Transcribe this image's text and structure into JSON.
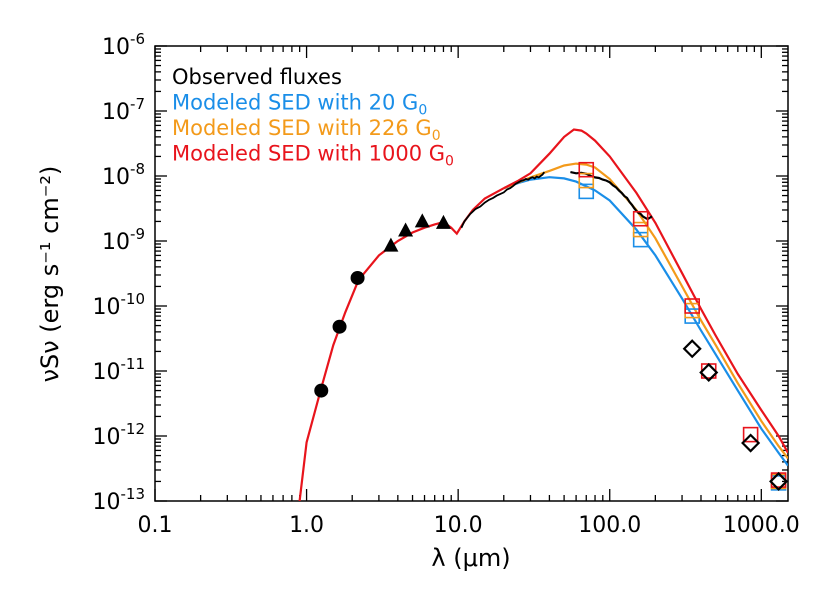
{
  "chart_data": {
    "type": "scatter",
    "xlabel": "λ (μm)",
    "ylabel": "νSν (erg s⁻¹ cm⁻²)",
    "xscale": "log",
    "yscale": "log",
    "xlim": [
      0.1,
      1500
    ],
    "ylim": [
      1e-13,
      1e-06
    ],
    "x_ticks": [
      {
        "value": 0.1,
        "label": "0.1"
      },
      {
        "value": 1,
        "label": "1.0"
      },
      {
        "value": 10,
        "label": "10.0"
      },
      {
        "value": 100,
        "label": "100.0"
      },
      {
        "value": 1000,
        "label": "1000.0"
      }
    ],
    "y_ticks": [
      {
        "value": 1e-13,
        "base": "10",
        "exp": "-13"
      },
      {
        "value": 1e-12,
        "base": "10",
        "exp": "-12"
      },
      {
        "value": 1e-11,
        "base": "10",
        "exp": "-11"
      },
      {
        "value": 1e-10,
        "base": "10",
        "exp": "-10"
      },
      {
        "value": 1e-09,
        "base": "10",
        "exp": "-9"
      },
      {
        "value": 1e-08,
        "base": "10",
        "exp": "-8"
      },
      {
        "value": 1e-07,
        "base": "10",
        "exp": "-7"
      },
      {
        "value": 1e-06,
        "base": "10",
        "exp": "-6"
      }
    ],
    "legend": {
      "placement": "top-left",
      "entries": [
        {
          "text": "Observed fluxes",
          "sub": "",
          "color": "#000000"
        },
        {
          "text": "Modeled SED with 20 G",
          "sub": "0",
          "color": "#1a8ee8"
        },
        {
          "text": "Modeled SED with 226 G",
          "sub": "0",
          "color": "#f39a1a"
        },
        {
          "text": "Modeled SED with 1000 G",
          "sub": "0",
          "color": "#e8141c"
        }
      ]
    },
    "observed": {
      "color": "#000000",
      "circles": [
        {
          "x": 1.25,
          "y": 5e-12
        },
        {
          "x": 1.65,
          "y": 4.8e-11
        },
        {
          "x": 2.17,
          "y": 2.7e-10
        }
      ],
      "triangles": [
        {
          "x": 3.6,
          "y": 8.5e-10
        },
        {
          "x": 4.5,
          "y": 1.45e-09
        },
        {
          "x": 5.8,
          "y": 2e-09
        },
        {
          "x": 8.0,
          "y": 1.9e-09
        }
      ],
      "diamonds": [
        {
          "x": 350,
          "y": 2.2e-11
        },
        {
          "x": 450,
          "y": 9.5e-12
        },
        {
          "x": 850,
          "y": 7.8e-13
        },
        {
          "x": 1300,
          "y": 2e-13
        }
      ],
      "spectrum_irs": [
        [
          10.5,
          1.6e-09
        ],
        [
          11,
          2e-09
        ],
        [
          11.5,
          2.3e-09
        ],
        [
          12,
          2.6e-09
        ],
        [
          13,
          3.1e-09
        ],
        [
          14,
          3.4e-09
        ],
        [
          15,
          3.9e-09
        ],
        [
          16,
          4.3e-09
        ],
        [
          17,
          4.6e-09
        ],
        [
          18,
          5e-09
        ],
        [
          19,
          5.3e-09
        ],
        [
          20,
          5.6e-09
        ],
        [
          21,
          6.2e-09
        ],
        [
          22,
          6.5e-09
        ],
        [
          23,
          7e-09
        ],
        [
          24,
          7.6e-09
        ],
        [
          25,
          8e-09
        ],
        [
          26,
          8.4e-09
        ],
        [
          27,
          8.6e-09
        ],
        [
          28,
          9e-09
        ],
        [
          29,
          8.8e-09
        ],
        [
          30,
          9.3e-09
        ],
        [
          31,
          9.6e-09
        ],
        [
          32,
          9.2e-09
        ],
        [
          33,
          9.8e-09
        ],
        [
          34,
          9.5e-09
        ],
        [
          35,
          1e-08
        ],
        [
          36,
          1.05e-08
        ],
        [
          37,
          1.15e-08
        ]
      ],
      "spectrum_pacs": [
        [
          55,
          1.15e-08
        ],
        [
          60,
          1.1e-08
        ],
        [
          65,
          1.12e-08
        ],
        [
          70,
          1.08e-08
        ],
        [
          75,
          1e-08
        ],
        [
          80,
          9.5e-09
        ],
        [
          85,
          9.3e-09
        ],
        [
          90,
          8.8e-09
        ],
        [
          95,
          8.5e-09
        ],
        [
          100,
          8e-09
        ],
        [
          105,
          7.2e-09
        ],
        [
          110,
          6.7e-09
        ],
        [
          115,
          6e-09
        ],
        [
          120,
          5.5e-09
        ],
        [
          125,
          4.9e-09
        ],
        [
          130,
          4.6e-09
        ],
        [
          135,
          4e-09
        ],
        [
          140,
          3.6e-09
        ],
        [
          145,
          3.2e-09
        ],
        [
          150,
          2.9e-09
        ],
        [
          155,
          2.7e-09
        ],
        [
          160,
          2.6e-09
        ],
        [
          165,
          2.4e-09
        ],
        [
          170,
          2.3e-09
        ],
        [
          175,
          2.2e-09
        ],
        [
          180,
          2.2e-09
        ],
        [
          185,
          2.3e-09
        ],
        [
          190,
          2.4e-09
        ]
      ]
    },
    "model_squares": [
      {
        "color": "#1a8ee8",
        "points": [
          {
            "x": 70,
            "y": 5.8e-09
          },
          {
            "x": 160,
            "y": 1.05e-09
          },
          {
            "x": 350,
            "y": 7e-11
          },
          {
            "x": 1300,
            "y": 1.9e-13
          }
        ]
      },
      {
        "color": "#f39a1a",
        "points": [
          {
            "x": 70,
            "y": 8.5e-09
          },
          {
            "x": 160,
            "y": 1.5e-09
          },
          {
            "x": 350,
            "y": 8.5e-11
          },
          {
            "x": 1300,
            "y": 2e-13
          }
        ]
      },
      {
        "color": "#e8141c",
        "points": [
          {
            "x": 70,
            "y": 1.25e-08
          },
          {
            "x": 160,
            "y": 2.2e-09
          },
          {
            "x": 350,
            "y": 1e-10
          },
          {
            "x": 450,
            "y": 1e-11
          },
          {
            "x": 850,
            "y": 1.05e-12
          },
          {
            "x": 1300,
            "y": 2.1e-13
          }
        ]
      }
    ],
    "common_model_curve": {
      "color": "#e8141c",
      "points": [
        [
          0.9,
          1e-13
        ],
        [
          1.0,
          8e-13
        ],
        [
          1.25,
          5.5e-12
        ],
        [
          1.5,
          2.5e-11
        ],
        [
          1.8,
          8e-11
        ],
        [
          2.2,
          2.5e-10
        ],
        [
          3.0,
          6e-10
        ],
        [
          4.0,
          1e-09
        ],
        [
          5.0,
          1.35e-09
        ],
        [
          6.0,
          1.6e-09
        ],
        [
          7.0,
          1.8e-09
        ],
        [
          8.0,
          1.95e-09
        ],
        [
          9.0,
          1.6e-09
        ],
        [
          9.8,
          1.3e-09
        ],
        [
          11,
          2e-09
        ],
        [
          12.5,
          3e-09
        ],
        [
          15,
          4.5e-09
        ],
        [
          20,
          6.5e-09
        ]
      ]
    },
    "series": [
      {
        "color": "#1a8ee8",
        "points": [
          [
            20,
            6.5e-09
          ],
          [
            25,
            7.8e-09
          ],
          [
            30,
            8.8e-09
          ],
          [
            40,
            9.6e-09
          ],
          [
            50,
            9.2e-09
          ],
          [
            60,
            8.2e-09
          ],
          [
            80,
            6e-09
          ],
          [
            100,
            4.2e-09
          ],
          [
            150,
            1.5e-09
          ],
          [
            200,
            6e-10
          ],
          [
            300,
            1.3e-10
          ],
          [
            400,
            4.2e-11
          ],
          [
            500,
            1.8e-11
          ],
          [
            700,
            5e-12
          ],
          [
            1000,
            1.3e-12
          ],
          [
            1300,
            5.5e-13
          ],
          [
            1500,
            3.5e-13
          ]
        ]
      },
      {
        "color": "#f39a1a",
        "points": [
          [
            20,
            6.5e-09
          ],
          [
            25,
            8e-09
          ],
          [
            30,
            9.5e-09
          ],
          [
            40,
            1.2e-08
          ],
          [
            50,
            1.45e-08
          ],
          [
            60,
            1.55e-08
          ],
          [
            70,
            1.5e-08
          ],
          [
            80,
            1.35e-08
          ],
          [
            100,
            9e-09
          ],
          [
            150,
            3e-09
          ],
          [
            200,
            1.1e-09
          ],
          [
            300,
            2e-10
          ],
          [
            400,
            6e-11
          ],
          [
            500,
            2.5e-11
          ],
          [
            700,
            6.5e-12
          ],
          [
            1000,
            1.7e-12
          ],
          [
            1300,
            7e-13
          ],
          [
            1500,
            4.5e-13
          ]
        ]
      },
      {
        "color": "#e8141c",
        "points": [
          [
            20,
            6.5e-09
          ],
          [
            25,
            8.5e-09
          ],
          [
            30,
            1.1e-08
          ],
          [
            40,
            2.2e-08
          ],
          [
            50,
            4e-08
          ],
          [
            58,
            5.2e-08
          ],
          [
            65,
            5e-08
          ],
          [
            70,
            4.5e-08
          ],
          [
            80,
            3.5e-08
          ],
          [
            100,
            2e-08
          ],
          [
            150,
            5.5e-09
          ],
          [
            200,
            1.9e-09
          ],
          [
            300,
            3.2e-10
          ],
          [
            400,
            9e-11
          ],
          [
            500,
            3.5e-11
          ],
          [
            700,
            9e-12
          ],
          [
            1000,
            2.5e-12
          ],
          [
            1300,
            1e-12
          ],
          [
            1500,
            5.5e-13
          ]
        ]
      }
    ]
  }
}
